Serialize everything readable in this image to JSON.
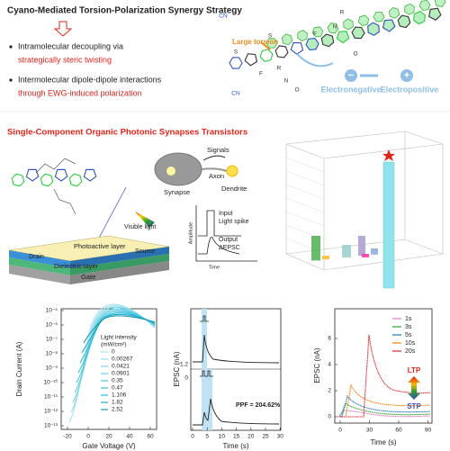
{
  "header": {
    "title": "Cyano-Mediated Torsion-Polarization Synergy Strategy"
  },
  "bullets": [
    {
      "lines": [
        "Intramolecular decoupling via",
        "strategically steric twisting"
      ]
    },
    {
      "lines": [
        "Intermolecular dipole-dipole interactions",
        "through EWG-induced polarization"
      ]
    }
  ],
  "structure": {
    "torsion": "Large torsion",
    "negative": "Electronegative",
    "positive": "Electropositive",
    "minus": "−",
    "plus": "+",
    "atoms": [
      "S",
      "S",
      "F",
      "F",
      "N",
      "N",
      "O",
      "O",
      "R",
      "R",
      "CN",
      "CN"
    ]
  },
  "device": {
    "title": "Single-Component Organic Photonic Synapses Transistors",
    "light": "Visible light",
    "layers": [
      "Photoactive layer",
      "Drain",
      "Source",
      "Dielectric layer",
      "Gate"
    ]
  },
  "synapse": {
    "signals": "Signals",
    "axon": "Axon",
    "synapse": "Synapse",
    "dendrite": "Dendrite"
  },
  "pulse": {
    "input": "Input",
    "spike": "Light spike",
    "output": "Output",
    "delta": "ΔEPSC",
    "y": "Amplitude",
    "x": "Time"
  },
  "transfer": {
    "ylabel": "Drain Current (A)",
    "xlabel": "Gate Voltage (V)",
    "yticks": [
      "10⁻⁵",
      "10⁻⁶",
      "10⁻⁷",
      "10⁻⁸",
      "10⁻⁹",
      "10⁻¹⁰",
      "10⁻¹¹",
      "10⁻¹²",
      "10⁻¹³"
    ],
    "xticks": [
      "-20",
      "0",
      "20",
      "40",
      "60"
    ],
    "legend_title": [
      "Light intensity",
      "(mW/cm²)"
    ],
    "legend": [
      "0",
      "0.00267",
      "0.0421",
      "0.0901",
      "0.35",
      "0.47",
      "1.106",
      "1.82",
      "2.52"
    ]
  },
  "ppf": {
    "ylabel": "EPSC (nA)",
    "xlabel": "Time (s)",
    "yticks": [
      "1.2",
      "0"
    ],
    "xticks": [
      "0",
      "5",
      "10",
      "15",
      "20",
      "25",
      "30"
    ],
    "note": "PPF = 204.62%"
  },
  "retention": {
    "ylabel": "EPSC (nA)",
    "xlabel": "Time (s)",
    "yticks": [
      "0",
      "2",
      "4",
      "6"
    ],
    "xticks": [
      "0",
      "30",
      "60",
      "90"
    ],
    "legend": [
      {
        "name": "1s",
        "color": "#e377c2"
      },
      {
        "name": "3s",
        "color": "#2ca02c"
      },
      {
        "name": "5s",
        "color": "#1f77b4"
      },
      {
        "name": "10s",
        "color": "#ff7f0e"
      },
      {
        "name": "20s",
        "color": "#d62728"
      }
    ],
    "ltp": "LTP",
    "stp": "STP"
  }
}
